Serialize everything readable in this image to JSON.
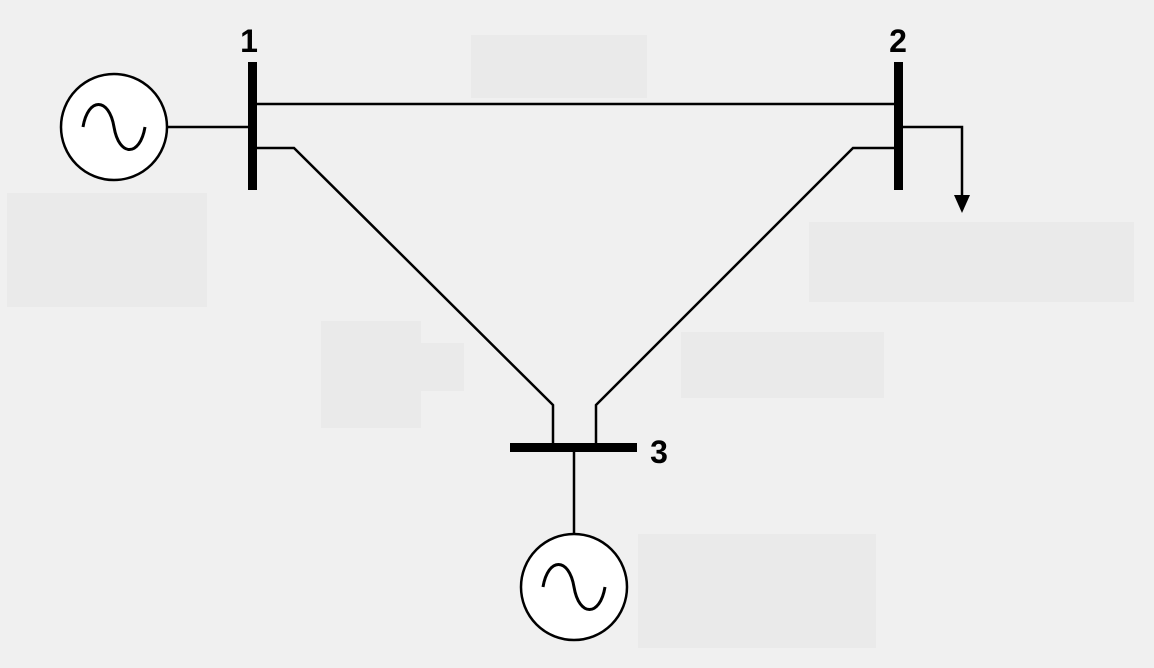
{
  "diagram": {
    "background": "#f0f0f0",
    "stroke_color": "#000000",
    "masked_region_color": "#eaeaea",
    "buses": [
      {
        "id": "bus-1",
        "label": "1"
      },
      {
        "id": "bus-2",
        "label": "2"
      },
      {
        "id": "bus-3",
        "label": "3"
      }
    ],
    "generators": [
      {
        "id": "generator-1",
        "connected_bus": "1",
        "icon": "ac-generator-icon"
      },
      {
        "id": "generator-3",
        "connected_bus": "3",
        "icon": "ac-generator-icon"
      }
    ],
    "loads": [
      {
        "id": "load-2",
        "connected_bus": "2",
        "icon": "load-arrow-icon"
      }
    ],
    "lines": [
      {
        "id": "line-1-2",
        "from": "1",
        "to": "2"
      },
      {
        "id": "line-1-3",
        "from": "1",
        "to": "3"
      },
      {
        "id": "line-2-3",
        "from": "2",
        "to": "3"
      }
    ]
  }
}
